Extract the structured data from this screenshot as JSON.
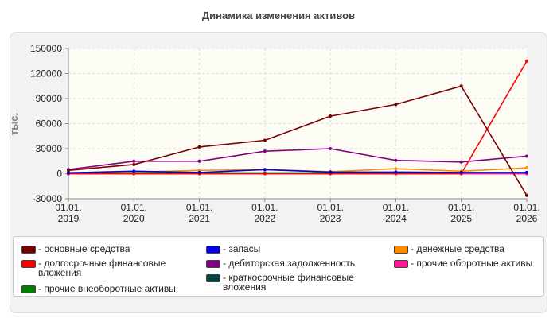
{
  "chart_data": {
    "type": "line",
    "title": "Динамика изменения активов",
    "ylabel": "тыс.",
    "xlabel": "",
    "ylim": [
      -30000,
      150000
    ],
    "yticks": [
      150000,
      120000,
      90000,
      60000,
      30000,
      0,
      -30000
    ],
    "categories": [
      "01.01.\n2019",
      "01.01.\n2020",
      "01.01.\n2021",
      "01.01.\n2022",
      "01.01.\n2023",
      "01.01.\n2024",
      "01.01.\n2025",
      "01.01.\n2026"
    ],
    "grid": true,
    "legend_position": "bottom",
    "series": [
      {
        "name": "- основные средства",
        "color": "#7b0000",
        "values": [
          4000,
          11000,
          32000,
          40000,
          69000,
          83000,
          105000,
          -26000
        ]
      },
      {
        "name": "- запасы",
        "color": "#0000e0",
        "values": [
          1000,
          3000,
          1500,
          5000,
          2000,
          2000,
          1500,
          1500
        ]
      },
      {
        "name": "- денежные средства",
        "color": "#ff8c00",
        "values": [
          1500,
          2000,
          4000,
          5000,
          2500,
          6000,
          3000,
          7000
        ]
      },
      {
        "name": "- долгосрочные финансовые вложения",
        "color": "#ff0000",
        "values": [
          0,
          0,
          0,
          0,
          0,
          0,
          0,
          135000
        ]
      },
      {
        "name": "- дебиторская задолженность",
        "color": "#800080",
        "values": [
          5000,
          15000,
          15000,
          27000,
          30000,
          16000,
          14000,
          21000
        ]
      },
      {
        "name": "- прочие оборотные активы",
        "color": "#ff1493",
        "values": [
          0,
          0,
          0,
          0,
          0,
          0,
          0,
          0
        ]
      },
      {
        "name": "- прочие внеоборотные активы",
        "color": "#008000",
        "values": [
          1000,
          1000,
          1000,
          1000,
          1000,
          1000,
          1000,
          1000
        ]
      },
      {
        "name": "- краткосрочные финансовые вложения",
        "color": "#004040",
        "values": [
          0,
          0,
          0,
          0,
          0,
          0,
          0,
          0
        ]
      }
    ]
  }
}
